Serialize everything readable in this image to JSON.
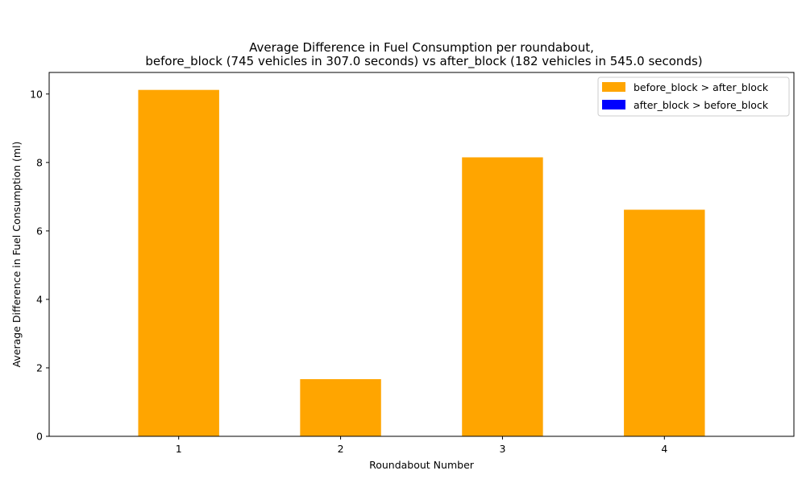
{
  "chart_data": {
    "type": "bar",
    "title_lines": [
      "Average Difference in Fuel Consumption per roundabout,",
      "before_block (745 vehicles in 307.0 seconds) vs after_block (182 vehicles in 545.0 seconds)"
    ],
    "xlabel": "Roundabout Number",
    "ylabel": "Average Difference in Fuel Consumption (ml)",
    "categories": [
      "1",
      "2",
      "3",
      "4"
    ],
    "values": [
      10.12,
      1.67,
      8.15,
      6.62
    ],
    "bar_colors": [
      "#FFA500",
      "#FFA500",
      "#FFA500",
      "#FFA500"
    ],
    "ylim": [
      0,
      10.63
    ],
    "yticks": [
      0,
      2,
      4,
      6,
      8,
      10
    ],
    "grid": false,
    "legend": {
      "placement": "top-right",
      "entries": [
        {
          "label": "before_block > after_block",
          "color": "#FFA500"
        },
        {
          "label": "after_block > before_block",
          "color": "#0000FF"
        }
      ]
    }
  }
}
